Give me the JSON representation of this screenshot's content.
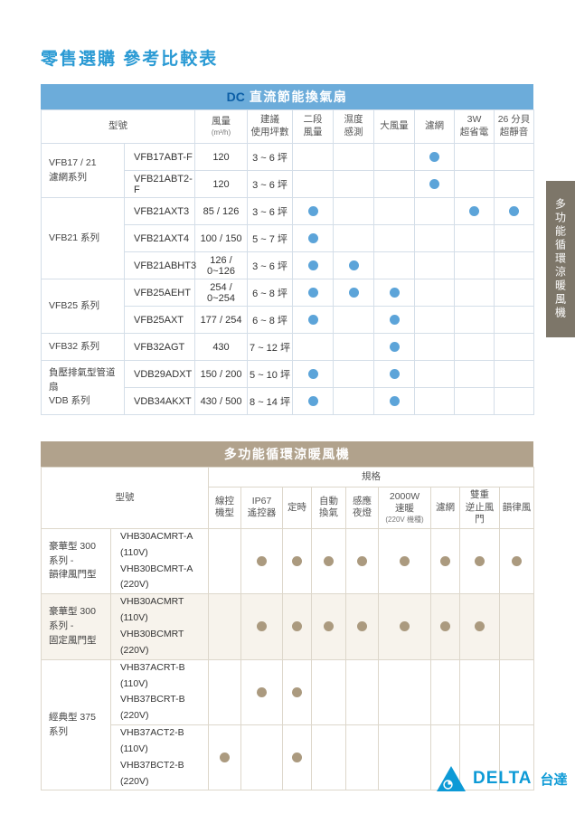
{
  "page": {
    "title": "零售選購 參考比較表"
  },
  "side_tab": {
    "label": "多功能循環涼暖風機"
  },
  "footer_logo": {
    "brand": "DELTA",
    "brand_suffix": "台達"
  },
  "colors": {
    "title_blue": "#2a9ad4",
    "table1_bar": "#6cacda",
    "table1_bar_prefix": "#0b5ea6",
    "table1_dot": "#5ca4d9",
    "table2_bar": "#b1a28c",
    "table2_dot": "#ab9a7f",
    "shaded_row": "#f7f3ec",
    "side_tab_bg": "#7d7669"
  },
  "table1": {
    "header": {
      "prefix": "DC",
      "title": "直流節能換氣扇"
    },
    "model_col": "型號",
    "columns": [
      "風量\n(m³/h)",
      "建議\n使用坪數",
      "二段\n風量",
      "濕度\n感測",
      "大風量",
      "濾網",
      "3W\n超省電",
      "26 分貝\n超靜音"
    ],
    "groups": [
      {
        "label": "VFB17 / 21\n濾網系列",
        "rows": [
          {
            "model": "VFB17ABT-F",
            "airflow": "120",
            "area": "3 ~ 6 坪",
            "features": [
              0,
              0,
              0,
              1,
              0,
              0
            ]
          },
          {
            "model": "VFB21ABT2-F",
            "airflow": "120",
            "area": "3 ~ 6 坪",
            "features": [
              0,
              0,
              0,
              1,
              0,
              0
            ]
          }
        ]
      },
      {
        "label": "VFB21 系列",
        "rows": [
          {
            "model": "VFB21AXT3",
            "airflow": "85 / 126",
            "area": "3 ~ 6 坪",
            "features": [
              1,
              0,
              0,
              0,
              1,
              1
            ]
          },
          {
            "model": "VFB21AXT4",
            "airflow": "100 / 150",
            "area": "5 ~ 7 坪",
            "features": [
              1,
              0,
              0,
              0,
              0,
              0
            ]
          },
          {
            "model": "VFB21ABHT3",
            "airflow": "126 / 0~126",
            "area": "3 ~ 6 坪",
            "features": [
              1,
              1,
              0,
              0,
              0,
              0
            ]
          }
        ]
      },
      {
        "label": "VFB25 系列",
        "rows": [
          {
            "model": "VFB25AEHT",
            "airflow": "254 / 0~254",
            "area": "6 ~ 8 坪",
            "features": [
              1,
              1,
              1,
              0,
              0,
              0
            ]
          },
          {
            "model": "VFB25AXT",
            "airflow": "177 / 254",
            "area": "6 ~ 8 坪",
            "features": [
              1,
              0,
              1,
              0,
              0,
              0
            ]
          }
        ]
      },
      {
        "label": "VFB32 系列",
        "rows": [
          {
            "model": "VFB32AGT",
            "airflow": "430",
            "area": "7 ~ 12 坪",
            "features": [
              0,
              0,
              1,
              0,
              0,
              0
            ]
          }
        ]
      },
      {
        "label": "負壓排氣型管道扇\nVDB 系列",
        "rows": [
          {
            "model": "VDB29ADXT",
            "airflow": "150 / 200",
            "area": "5 ~ 10 坪",
            "features": [
              1,
              0,
              1,
              0,
              0,
              0
            ]
          },
          {
            "model": "VDB34AKXT",
            "airflow": "430 / 500",
            "area": "8 ~ 14 坪",
            "features": [
              1,
              0,
              1,
              0,
              0,
              0
            ]
          }
        ]
      }
    ]
  },
  "table2": {
    "header": {
      "title": "多功能循環涼暖風機"
    },
    "model_col": "型號",
    "spec_label": "規格",
    "columns": [
      "線控\n機型",
      "IP67\n遙控器",
      "定時",
      "自動\n換氣",
      "感應\n夜燈",
      "2000W\n速暖\n(220V 機種)",
      "濾網",
      "雙重\n逆止風門",
      "韻律風"
    ],
    "groups": [
      {
        "label": "豪華型 300 系列 -\n韻律風門型",
        "shaded": false,
        "rows": [
          {
            "models": [
              "VHB30ACMRT-A (110V)",
              "VHB30BCMRT-A (220V)"
            ],
            "features": [
              0,
              1,
              1,
              1,
              1,
              1,
              1,
              1,
              1
            ]
          }
        ]
      },
      {
        "label": "豪華型 300 系列 -\n固定風門型",
        "shaded": true,
        "rows": [
          {
            "models": [
              "VHB30ACMRT (110V)",
              "VHB30BCMRT (220V)"
            ],
            "features": [
              0,
              1,
              1,
              1,
              1,
              1,
              1,
              1,
              0
            ]
          }
        ]
      },
      {
        "label": "經典型 375 系列",
        "shaded": false,
        "rows": [
          {
            "models": [
              "VHB37ACRT-B (110V)",
              "VHB37BCRT-B (220V)"
            ],
            "features": [
              0,
              1,
              1,
              0,
              0,
              0,
              0,
              0,
              0
            ]
          },
          {
            "models": [
              "VHB37ACT2-B (110V)",
              "VHB37BCT2-B (220V)"
            ],
            "features": [
              1,
              0,
              1,
              0,
              0,
              0,
              0,
              0,
              0
            ]
          }
        ]
      }
    ]
  }
}
